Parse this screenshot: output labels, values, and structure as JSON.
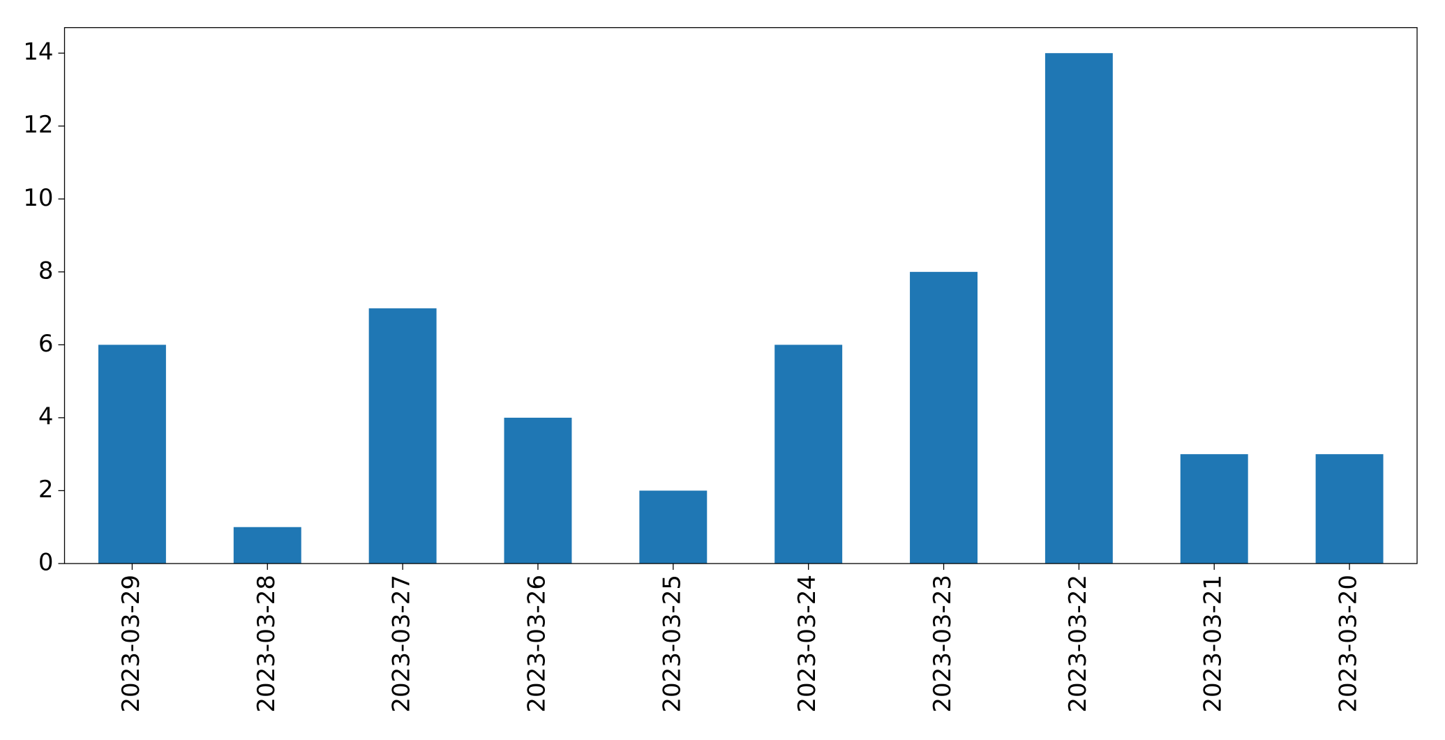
{
  "chart_data": {
    "type": "bar",
    "categories": [
      "2023-03-29",
      "2023-03-28",
      "2023-03-27",
      "2023-03-26",
      "2023-03-25",
      "2023-03-24",
      "2023-03-23",
      "2023-03-22",
      "2023-03-21",
      "2023-03-20"
    ],
    "values": [
      6,
      1,
      7,
      4,
      2,
      6,
      8,
      14,
      3,
      3
    ],
    "color": "#1f77b4",
    "ylim": [
      0,
      14.7
    ],
    "yticks": [
      0,
      2,
      4,
      6,
      8,
      10,
      12,
      14
    ],
    "grid": false
  }
}
